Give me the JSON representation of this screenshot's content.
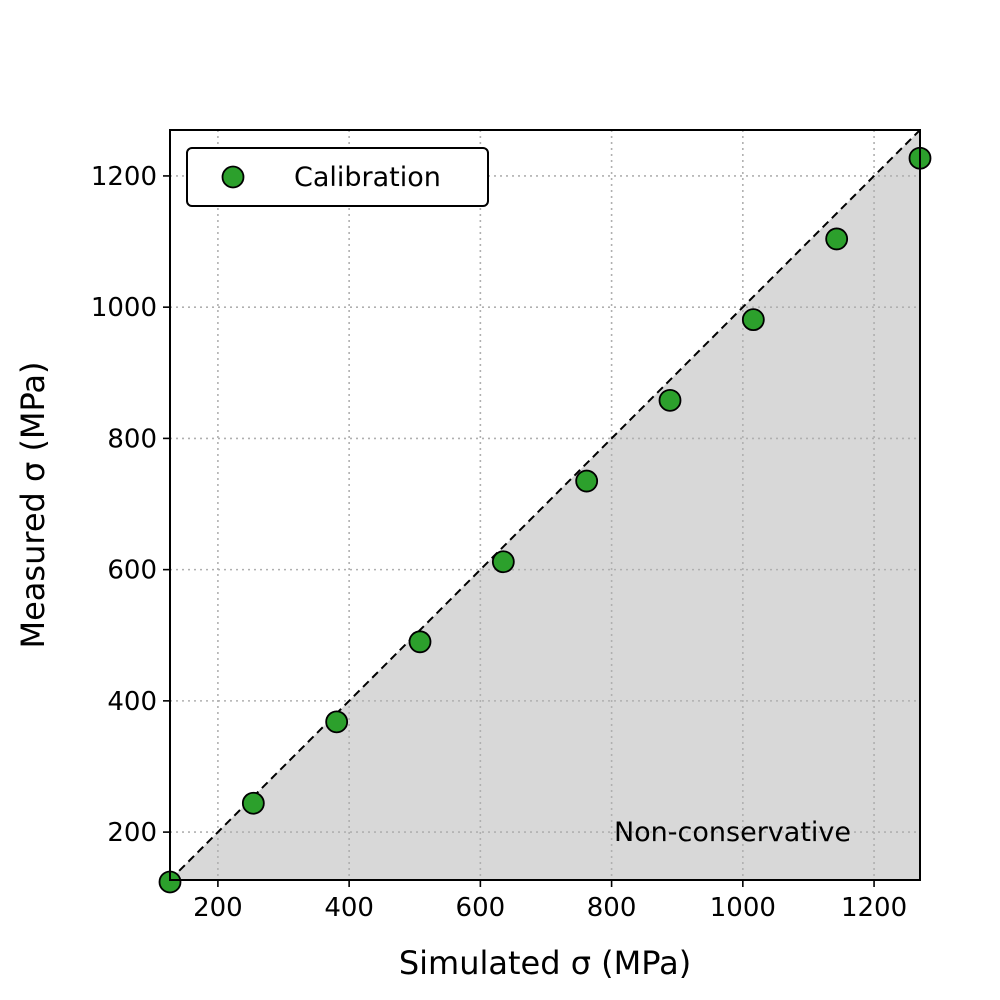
{
  "chart_data": {
    "type": "scatter",
    "xlabel": "Simulated σ (MPa)",
    "ylabel": "Measured σ (MPa)",
    "xlim": [
      127,
      1270
    ],
    "ylim": [
      127,
      1270
    ],
    "xticks": [
      200,
      400,
      600,
      800,
      1000,
      1200
    ],
    "yticks": [
      200,
      400,
      600,
      800,
      1000,
      1200
    ],
    "grid": true,
    "legend_position": "top-left",
    "series": [
      {
        "name": "Calibration",
        "color": "#2ca02c",
        "x": [
          127,
          254,
          381,
          508,
          635,
          762,
          889,
          1016,
          1143,
          1270
        ],
        "y": [
          124,
          244,
          368,
          490,
          612,
          735,
          858,
          981,
          1104,
          1227
        ]
      }
    ],
    "reference_line": {
      "slope": 1,
      "style": "dashed",
      "color": "#000000"
    },
    "shaded_region": {
      "below": "reference_line",
      "color": "#d9d9d9"
    },
    "annotations": [
      {
        "text": "Non-conservative"
      }
    ]
  }
}
